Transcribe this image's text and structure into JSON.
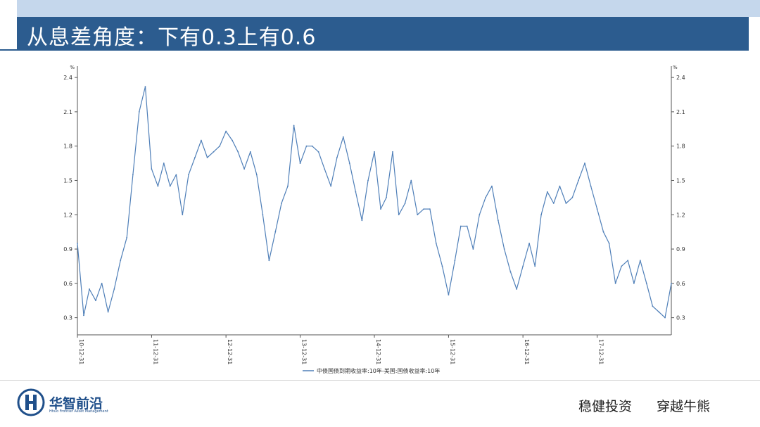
{
  "slide": {
    "title": "从息差角度：下有0.3上有0.6"
  },
  "footer": {
    "logo_cn": "华智前沿",
    "logo_en": "Hhuo Frontier Asset Management",
    "slogan_left": "稳健投资",
    "slogan_right": "穿越牛熊"
  },
  "colors": {
    "title_bar": "#2c5c8f",
    "top_band": "#c5d7ec",
    "series_line": "#4f7fb8",
    "logo_blue": "#1f4f8a"
  },
  "chart_data": {
    "type": "line",
    "unit_left": "%",
    "unit_right": "%",
    "ylim": [
      0.15,
      2.45
    ],
    "yticks": [
      0.3,
      0.6,
      0.9,
      1.2,
      1.5,
      1.8,
      2.1,
      2.4
    ],
    "ytick_labels": [
      "0.3",
      "0.6",
      "0.9",
      "1.2",
      "1.5",
      "1.8",
      "2.1",
      "2.4"
    ],
    "xlim": [
      "2010-12-31",
      "2018-12-31"
    ],
    "xticks": [
      "2010-12-31",
      "2011-12-31",
      "2012-12-31",
      "2013-12-31",
      "2014-12-31",
      "2015-12-31",
      "2016-12-31",
      "2017-12-31"
    ],
    "xtick_labels": [
      "10-12-31",
      "11-12-31",
      "12-12-31",
      "13-12-31",
      "14-12-31",
      "15-12-31",
      "16-12-31",
      "17-12-31"
    ],
    "legend": "bottom-center",
    "grid": false,
    "series": [
      {
        "name": "中债国债到期收益率:10年-美国:国债收益率:10年",
        "x": [
          "2010-12-31",
          "2011-01-31",
          "2011-02-28",
          "2011-03-31",
          "2011-04-30",
          "2011-05-31",
          "2011-06-30",
          "2011-07-31",
          "2011-08-31",
          "2011-09-30",
          "2011-10-31",
          "2011-11-30",
          "2011-12-31",
          "2012-01-31",
          "2012-02-29",
          "2012-03-31",
          "2012-04-30",
          "2012-05-31",
          "2012-06-30",
          "2012-07-31",
          "2012-08-31",
          "2012-09-30",
          "2012-10-31",
          "2012-11-30",
          "2012-12-31",
          "2013-01-31",
          "2013-02-28",
          "2013-03-31",
          "2013-04-30",
          "2013-05-31",
          "2013-06-30",
          "2013-07-31",
          "2013-08-31",
          "2013-09-30",
          "2013-10-31",
          "2013-11-30",
          "2013-12-31",
          "2014-01-31",
          "2014-02-28",
          "2014-03-31",
          "2014-04-30",
          "2014-05-31",
          "2014-06-30",
          "2014-07-31",
          "2014-08-31",
          "2014-09-30",
          "2014-10-31",
          "2014-11-30",
          "2014-12-31",
          "2015-01-31",
          "2015-02-28",
          "2015-03-31",
          "2015-04-30",
          "2015-05-31",
          "2015-06-30",
          "2015-07-31",
          "2015-08-31",
          "2015-09-30",
          "2015-10-31",
          "2015-11-30",
          "2015-12-31",
          "2016-01-31",
          "2016-02-29",
          "2016-03-31",
          "2016-04-30",
          "2016-05-31",
          "2016-06-30",
          "2016-07-31",
          "2016-08-31",
          "2016-09-30",
          "2016-10-31",
          "2016-11-30",
          "2016-12-31",
          "2017-01-31",
          "2017-02-28",
          "2017-03-31",
          "2017-04-30",
          "2017-05-31",
          "2017-06-30",
          "2017-07-31",
          "2017-08-31",
          "2017-09-30",
          "2017-10-31",
          "2017-11-30",
          "2017-12-31",
          "2018-01-31",
          "2018-02-28",
          "2018-03-31",
          "2018-04-30",
          "2018-05-31",
          "2018-06-30",
          "2018-07-31",
          "2018-08-31",
          "2018-09-30",
          "2018-10-31",
          "2018-11-30",
          "2018-12-31"
        ],
        "values": [
          0.95,
          0.32,
          0.55,
          0.45,
          0.6,
          0.35,
          0.55,
          0.8,
          1.0,
          1.55,
          2.1,
          2.32,
          1.6,
          1.45,
          1.65,
          1.45,
          1.55,
          1.2,
          1.55,
          1.7,
          1.85,
          1.7,
          1.75,
          1.8,
          1.93,
          1.85,
          1.75,
          1.6,
          1.75,
          1.55,
          1.2,
          0.8,
          1.05,
          1.3,
          1.45,
          1.98,
          1.65,
          1.8,
          1.8,
          1.75,
          1.6,
          1.45,
          1.7,
          1.88,
          1.65,
          1.4,
          1.15,
          1.5,
          1.75,
          1.25,
          1.35,
          1.75,
          1.2,
          1.3,
          1.5,
          1.2,
          1.25,
          1.25,
          0.95,
          0.75,
          0.5,
          0.8,
          1.1,
          1.1,
          0.9,
          1.2,
          1.35,
          1.45,
          1.15,
          0.9,
          0.7,
          0.55,
          0.75,
          0.95,
          0.75,
          1.2,
          1.4,
          1.3,
          1.45,
          1.3,
          1.35,
          1.5,
          1.65,
          1.45,
          1.25,
          1.05,
          0.95,
          0.6,
          0.75,
          0.8,
          0.6,
          0.8,
          0.6,
          0.4,
          0.35,
          0.3,
          0.6
        ]
      }
    ]
  }
}
